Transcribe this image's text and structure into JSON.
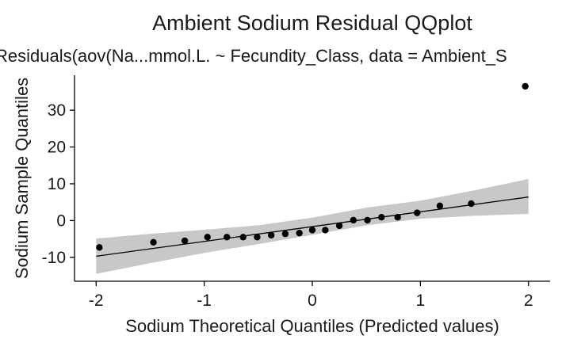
{
  "chart_data": {
    "type": "scatter",
    "title": "Ambient Sodium Residual QQplot",
    "subtitle": "Residuals(aov(Na...mmol.L. ~ Fecundity_Class, data = Ambient_S",
    "xlabel": "Sodium Theoretical Quantiles (Predicted values)",
    "ylabel": "Sodium Sample Quantiles",
    "xlim": [
      -2.2,
      2.2
    ],
    "ylim": [
      -16.5,
      39.5
    ],
    "x_ticks": [
      -2,
      -1,
      0,
      1,
      2
    ],
    "x_tick_labels": [
      "-2",
      "-1",
      "0",
      "1",
      "2"
    ],
    "y_ticks": [
      -10,
      0,
      10,
      20,
      30
    ],
    "y_tick_labels": [
      "-10",
      "0",
      "10",
      "20",
      "30"
    ],
    "grid": false,
    "points": {
      "x": [
        -1.97,
        -1.47,
        -1.18,
        -0.97,
        -0.79,
        -0.64,
        -0.51,
        -0.38,
        -0.25,
        -0.12,
        0.0,
        0.12,
        0.25,
        0.38,
        0.51,
        0.64,
        0.79,
        0.97,
        1.18,
        1.47,
        1.97
      ],
      "y": [
        -7.3,
        -5.9,
        -5.5,
        -4.5,
        -4.5,
        -4.5,
        -4.5,
        -4.0,
        -3.6,
        -3.4,
        -2.6,
        -2.6,
        -1.4,
        0.1,
        0.1,
        0.9,
        0.9,
        2.1,
        4.0,
        4.6,
        36.5
      ]
    },
    "reference_line": {
      "x": [
        -2.0,
        2.0
      ],
      "y": [
        -9.7,
        6.4
      ]
    },
    "confidence_band": {
      "x": [
        -2.0,
        -1.5,
        -1.0,
        -0.5,
        0.0,
        0.5,
        1.0,
        1.5,
        2.0
      ],
      "lower": [
        -14.5,
        -11.6,
        -8.8,
        -6.4,
        -3.9,
        -1.3,
        0.5,
        1.3,
        1.8
      ],
      "upper": [
        -4.9,
        -3.6,
        -2.5,
        -1.3,
        0.8,
        3.5,
        5.4,
        8.2,
        11.3
      ]
    },
    "colors": {
      "points": "#000000",
      "line": "#000000",
      "band": "#c8c8c8",
      "axis": "#000000"
    }
  }
}
